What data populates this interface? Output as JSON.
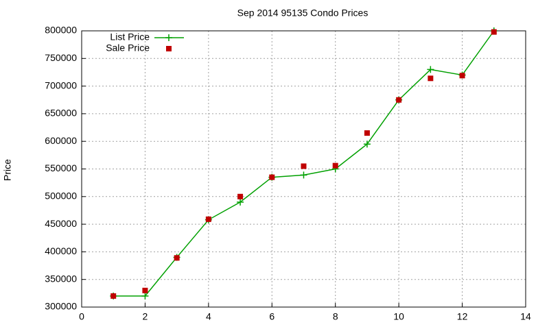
{
  "chart_data": {
    "type": "line",
    "title": "Sep 2014 95135 Condo Prices",
    "y_label": "Price",
    "x": [
      1,
      2,
      3,
      4,
      5,
      6,
      7,
      8,
      9,
      10,
      11,
      12,
      13
    ],
    "series": [
      {
        "name": "List Price",
        "color": "#00a000",
        "line": true,
        "marker": "plus",
        "values": [
          320000,
          320000,
          390000,
          458000,
          490000,
          535000,
          539000,
          550000,
          595000,
          675000,
          730000,
          720000,
          800000
        ]
      },
      {
        "name": "Sale Price",
        "color": "#c00000",
        "line": false,
        "marker": "square",
        "values": [
          320000,
          330000,
          389000,
          459000,
          500000,
          535000,
          555000,
          556000,
          615000,
          675000,
          714000,
          719000,
          798000
        ]
      }
    ],
    "xlim": [
      0,
      14
    ],
    "xticks": [
      0,
      2,
      4,
      6,
      8,
      10,
      12,
      14
    ],
    "ylim": [
      300000,
      800000
    ],
    "yticks": [
      300000,
      350000,
      400000,
      450000,
      500000,
      550000,
      600000,
      650000,
      700000,
      750000,
      800000
    ],
    "grid": true,
    "legend": "top-left"
  }
}
